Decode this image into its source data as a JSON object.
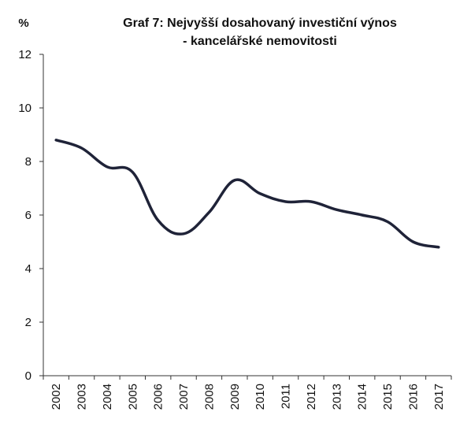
{
  "chart_data": {
    "type": "line",
    "title": "Graf 7: Nejvyšší dosahovaný investiční výnos",
    "subtitle": "- kancelářské nemovitosti",
    "ylabel": "%",
    "xlabel": "",
    "ylim": [
      0,
      12
    ],
    "yticks": [
      0,
      2,
      4,
      6,
      8,
      10,
      12
    ],
    "categories": [
      "2002",
      "2003",
      "2004",
      "2005",
      "2006",
      "2007",
      "2008",
      "2009",
      "2010",
      "2011",
      "2012",
      "2013",
      "2014",
      "2015",
      "2016",
      "2017"
    ],
    "series": [
      {
        "values": [
          8.8,
          8.5,
          7.8,
          7.6,
          5.8,
          5.3,
          6.1,
          7.3,
          6.8,
          6.5,
          6.5,
          6.2,
          6.0,
          5.75,
          5.0,
          4.8
        ]
      }
    ],
    "line_color": "#1f2338",
    "grid": false,
    "legend": "none"
  }
}
